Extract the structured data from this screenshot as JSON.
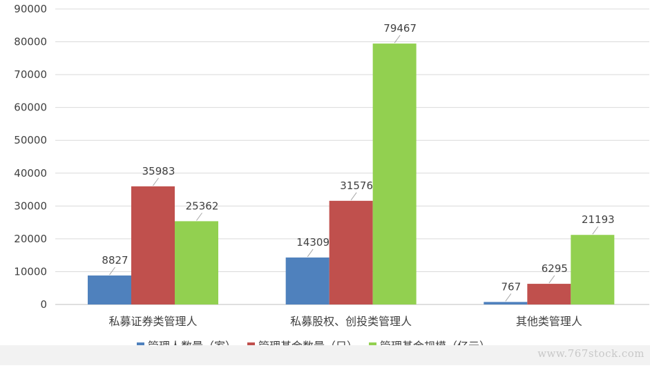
{
  "chart_data": {
    "type": "bar",
    "title": "",
    "xlabel": "",
    "ylabel": "",
    "ylim": [
      0,
      90000
    ],
    "yticks": [
      0,
      10000,
      20000,
      30000,
      40000,
      50000,
      60000,
      70000,
      80000,
      90000
    ],
    "grid": true,
    "legend_position": "bottom",
    "categories": [
      "私募证券类管理人",
      "私募股权、创投类管理人",
      "其他类管理人"
    ],
    "series": [
      {
        "name": "管理人数量（家）",
        "color": "#4f81bd",
        "values": [
          8827,
          14309,
          767
        ]
      },
      {
        "name": "管理基金数量（只）",
        "color": "#c0504d",
        "values": [
          35983,
          31576,
          6295
        ]
      },
      {
        "name": "管理基金规模（亿元）",
        "color": "#92d050",
        "values": [
          25362,
          79467,
          21193
        ]
      }
    ]
  },
  "watermark": "www.767stock.com"
}
